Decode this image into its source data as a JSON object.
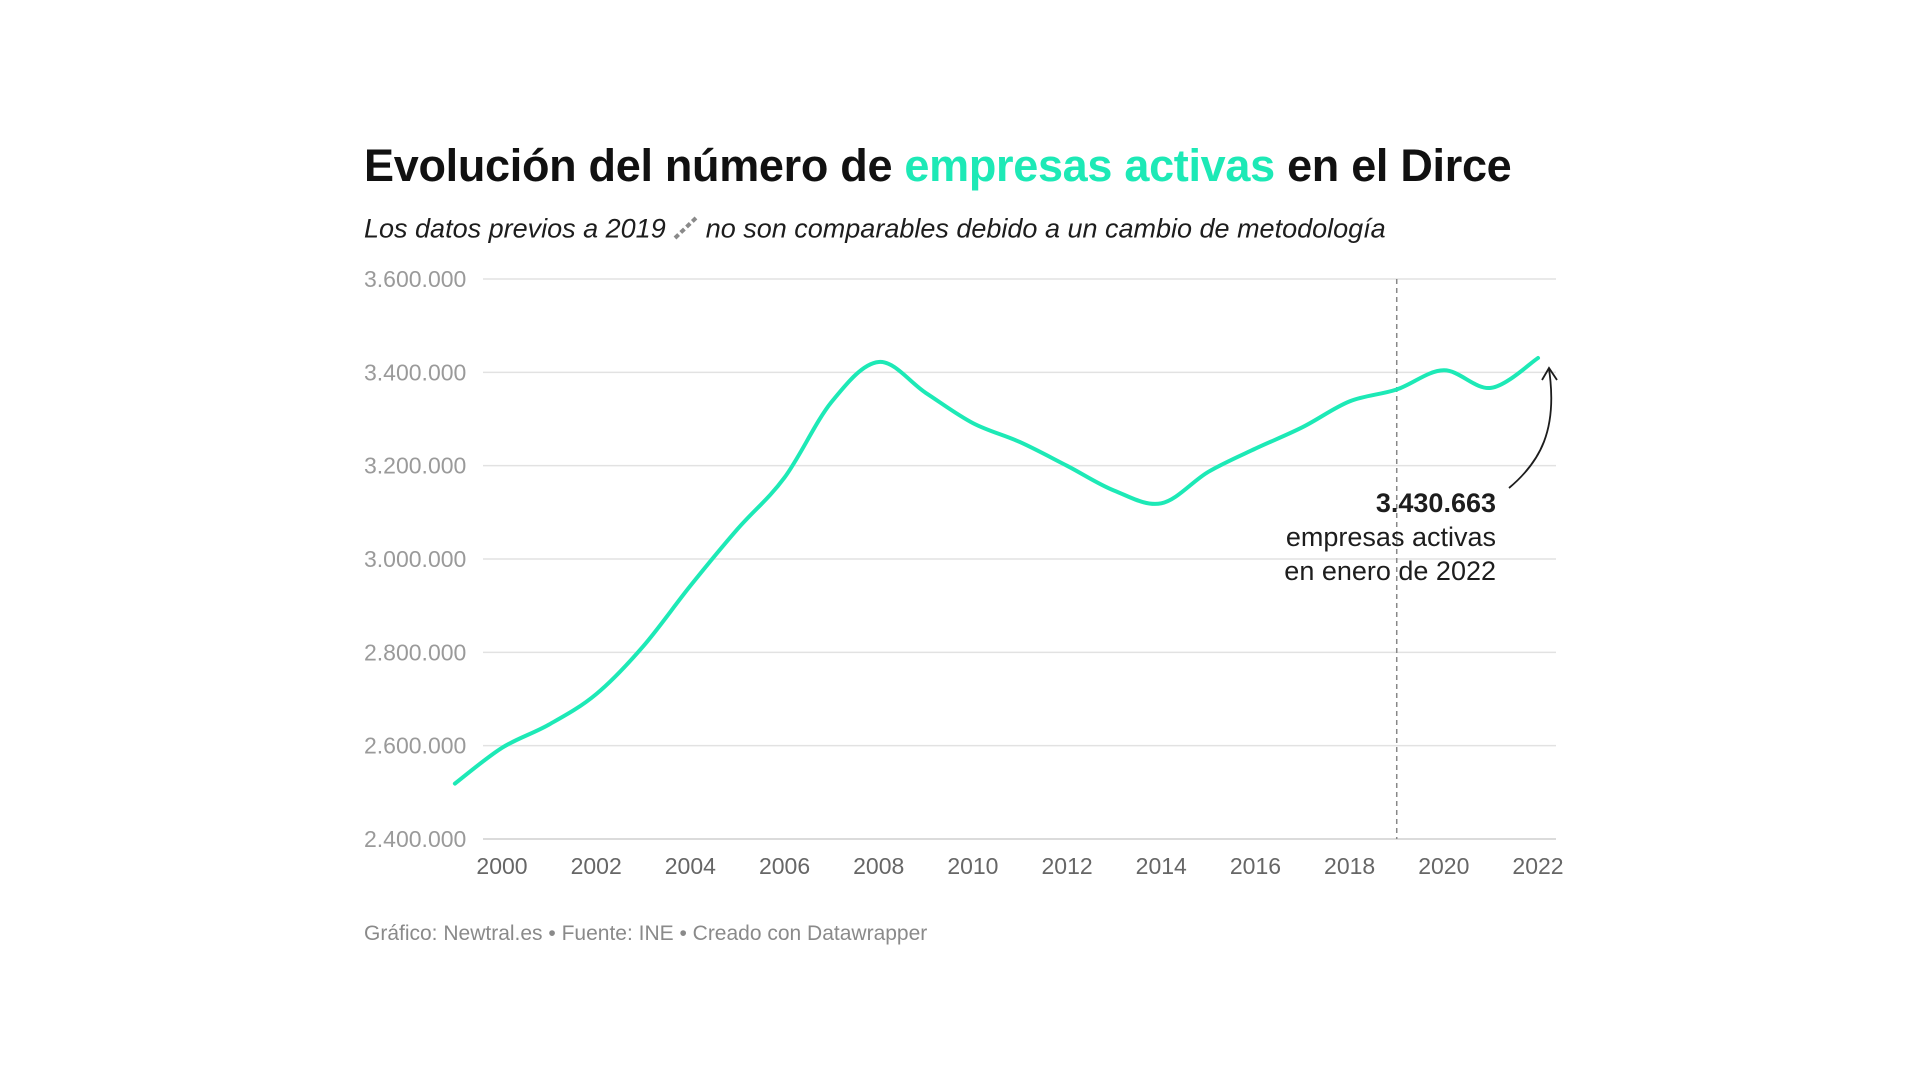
{
  "title": {
    "part1": "Evolución del número de",
    "highlight": "empresas activas",
    "part2": "en el Dirce"
  },
  "subtitle": {
    "part1": "Los datos previos a 2019",
    "part2": "no son comparables debido a un cambio de metodología"
  },
  "footer": "Gráfico: Newtral.es • Fuente: INE • Creado con Datawrapper",
  "colors": {
    "line": "#1de9b6",
    "grid": "#e2e2e2",
    "reference_line": "#888888"
  },
  "chart_data": {
    "type": "line",
    "x": [
      1999,
      2000,
      2001,
      2002,
      2003,
      2004,
      2005,
      2006,
      2007,
      2008,
      2009,
      2010,
      2011,
      2012,
      2013,
      2014,
      2015,
      2016,
      2017,
      2018,
      2019,
      2020,
      2021,
      2022
    ],
    "series": [
      {
        "values": [
          2518801,
          2595392,
          2645317,
          2710400,
          2813159,
          2942583,
          3064129,
          3174393,
          3336657,
          3422239,
          3355830,
          3291263,
          3250576,
          3199617,
          3146570,
          3119310,
          3186878,
          3236582,
          3282346,
          3337646,
          3363197,
          3404428,
          3366570,
          3430663
        ]
      }
    ],
    "yticks": [
      "2.400.000",
      "2.600.000",
      "2.800.000",
      "3.000.000",
      "3.200.000",
      "3.400.000",
      "3.600.000"
    ],
    "xticks": [
      "2000",
      "2002",
      "2004",
      "2006",
      "2008",
      "2010",
      "2012",
      "2014",
      "2016",
      "2018",
      "2020",
      "2022"
    ],
    "ylim": [
      2400000,
      3600000
    ],
    "xlim": [
      1999,
      2022
    ],
    "grid": true,
    "reference_line_x": 2019,
    "annotation": {
      "value": "3.430.663",
      "line1": "empresas activas",
      "line2": "en enero de 2022"
    }
  }
}
